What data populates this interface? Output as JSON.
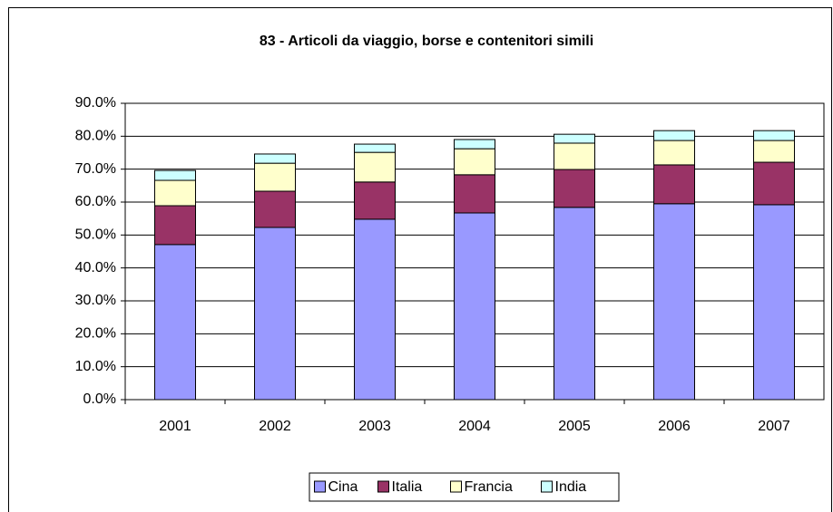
{
  "chart_data": {
    "type": "bar",
    "stacked": true,
    "title": "83 - Articoli da viaggio, borse e contenitori simili",
    "categories": [
      "2001",
      "2002",
      "2003",
      "2004",
      "2005",
      "2006",
      "2007"
    ],
    "series": [
      {
        "name": "Cina",
        "color": "#9999ff",
        "values": [
          47.1,
          52.3,
          54.8,
          56.7,
          58.4,
          59.5,
          59.2
        ]
      },
      {
        "name": "Italia",
        "color": "#993366",
        "values": [
          11.8,
          11.0,
          11.3,
          11.6,
          11.5,
          11.8,
          12.9
        ]
      },
      {
        "name": "Francia",
        "color": "#ffffcc",
        "values": [
          7.7,
          8.5,
          9.0,
          7.9,
          8.0,
          7.4,
          6.6
        ]
      },
      {
        "name": "India",
        "color": "#ccffff",
        "values": [
          3.0,
          2.8,
          2.5,
          2.8,
          2.7,
          3.0,
          3.0
        ]
      }
    ],
    "ylim": [
      0,
      90
    ],
    "yticks": [
      {
        "value": 0,
        "label": "0.0%"
      },
      {
        "value": 10,
        "label": "10.0%"
      },
      {
        "value": 20,
        "label": "20.0%"
      },
      {
        "value": 30,
        "label": "30.0%"
      },
      {
        "value": 40,
        "label": "40.0%"
      },
      {
        "value": 50,
        "label": "50.0%"
      },
      {
        "value": 60,
        "label": "60.0%"
      },
      {
        "value": 70,
        "label": "70.0%"
      },
      {
        "value": 80,
        "label": "80.0%"
      },
      {
        "value": 90,
        "label": "90.0%"
      }
    ],
    "grid": true,
    "legend": "bottom"
  }
}
